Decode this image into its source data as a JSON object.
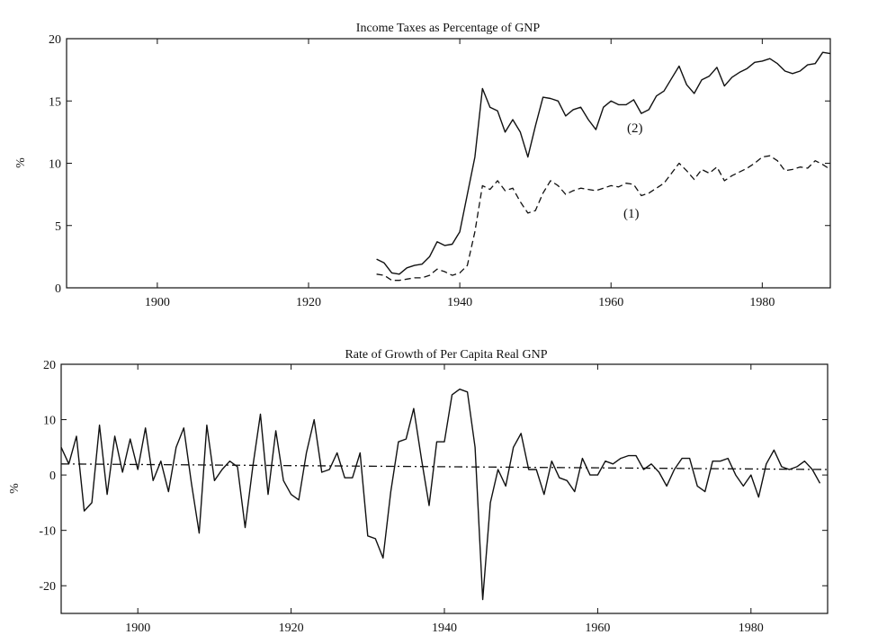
{
  "chart_data": [
    {
      "type": "line",
      "title": "Income Taxes as Percentage of GNP",
      "ylabel": "%",
      "xlim": [
        1888,
        1989
      ],
      "ylim": [
        0,
        20
      ],
      "x_ticks": [
        1900,
        1920,
        1940,
        1960,
        1980
      ],
      "y_ticks": [
        0,
        5,
        10,
        15,
        20
      ],
      "grid": false,
      "series": [
        {
          "name": "(2)",
          "style": "solid",
          "x": [
            1929,
            1930,
            1931,
            1932,
            1933,
            1934,
            1935,
            1936,
            1937,
            1938,
            1939,
            1940,
            1941,
            1942,
            1943,
            1944,
            1945,
            1946,
            1947,
            1948,
            1949,
            1950,
            1951,
            1952,
            1953,
            1954,
            1955,
            1956,
            1957,
            1958,
            1959,
            1960,
            1961,
            1962,
            1963,
            1964,
            1965,
            1966,
            1967,
            1968,
            1969,
            1970,
            1971,
            1972,
            1973,
            1974,
            1975,
            1976,
            1977,
            1978,
            1979,
            1980,
            1981,
            1982,
            1983,
            1984,
            1985,
            1986,
            1987,
            1988,
            1989
          ],
          "values": [
            2.3,
            2.0,
            1.2,
            1.1,
            1.6,
            1.8,
            1.9,
            2.5,
            3.7,
            3.4,
            3.5,
            4.5,
            7.5,
            10.5,
            16.0,
            14.5,
            14.2,
            12.5,
            13.5,
            12.5,
            10.5,
            13.0,
            15.3,
            15.2,
            15.0,
            13.8,
            14.3,
            14.5,
            13.5,
            12.7,
            14.5,
            15.0,
            14.7,
            14.7,
            15.1,
            14.0,
            14.3,
            15.4,
            15.8,
            16.8,
            17.8,
            16.3,
            15.6,
            16.7,
            17.0,
            17.7,
            16.2,
            16.9,
            17.3,
            17.6,
            18.1,
            18.2,
            18.4,
            18.0,
            17.4,
            17.2,
            17.4,
            17.9,
            18.0,
            18.9,
            18.8
          ]
        },
        {
          "name": "(1)",
          "style": "dashed",
          "x": [
            1929,
            1930,
            1931,
            1932,
            1933,
            1934,
            1935,
            1936,
            1937,
            1938,
            1939,
            1940,
            1941,
            1942,
            1943,
            1944,
            1945,
            1946,
            1947,
            1948,
            1949,
            1950,
            1951,
            1952,
            1953,
            1954,
            1955,
            1956,
            1957,
            1958,
            1959,
            1960,
            1961,
            1962,
            1963,
            1964,
            1965,
            1966,
            1967,
            1968,
            1969,
            1970,
            1971,
            1972,
            1973,
            1974,
            1975,
            1976,
            1977,
            1978,
            1979,
            1980,
            1981,
            1982,
            1983,
            1984,
            1985,
            1986,
            1987,
            1988,
            1989
          ],
          "values": [
            1.1,
            1.0,
            0.6,
            0.6,
            0.7,
            0.8,
            0.8,
            1.0,
            1.5,
            1.3,
            1.0,
            1.2,
            1.8,
            4.5,
            8.2,
            7.9,
            8.6,
            7.8,
            8.0,
            6.9,
            6.0,
            6.2,
            7.6,
            8.6,
            8.2,
            7.5,
            7.8,
            8.0,
            7.9,
            7.8,
            8.0,
            8.2,
            8.1,
            8.4,
            8.3,
            7.4,
            7.6,
            8.0,
            8.4,
            9.2,
            10.0,
            9.4,
            8.7,
            9.5,
            9.2,
            9.7,
            8.6,
            9.0,
            9.3,
            9.6,
            10.0,
            10.5,
            10.6,
            10.2,
            9.4,
            9.5,
            9.7,
            9.6,
            10.2,
            9.9,
            9.5
          ]
        }
      ]
    },
    {
      "type": "line",
      "title": "Rate of Growth of Per Capita Real GNP",
      "ylabel": "%",
      "xlim": [
        1890,
        1990
      ],
      "ylim": [
        -25,
        20
      ],
      "x_ticks": [
        1900,
        1920,
        1940,
        1960,
        1980
      ],
      "y_ticks": [
        -20,
        -10,
        0,
        10,
        20
      ],
      "grid": false,
      "series": [
        {
          "style": "solid",
          "x": [
            1890,
            1891,
            1892,
            1893,
            1894,
            1895,
            1896,
            1897,
            1898,
            1899,
            1900,
            1901,
            1902,
            1903,
            1904,
            1905,
            1906,
            1907,
            1908,
            1909,
            1910,
            1911,
            1912,
            1913,
            1914,
            1915,
            1916,
            1917,
            1918,
            1919,
            1920,
            1921,
            1922,
            1923,
            1924,
            1925,
            1926,
            1927,
            1928,
            1929,
            1930,
            1931,
            1932,
            1933,
            1934,
            1935,
            1936,
            1937,
            1938,
            1939,
            1940,
            1941,
            1942,
            1943,
            1944,
            1945,
            1946,
            1947,
            1948,
            1949,
            1950,
            1951,
            1952,
            1953,
            1954,
            1955,
            1956,
            1957,
            1958,
            1959,
            1960,
            1961,
            1962,
            1963,
            1964,
            1965,
            1966,
            1967,
            1968,
            1969,
            1970,
            1971,
            1972,
            1973,
            1974,
            1975,
            1976,
            1977,
            1978,
            1979,
            1980,
            1981,
            1982,
            1983,
            1984,
            1985,
            1986,
            1987,
            1988,
            1989
          ],
          "values": [
            5,
            2,
            7,
            -6.5,
            -5,
            9,
            -3.5,
            7,
            0.5,
            6.5,
            1,
            8.5,
            -1,
            2.5,
            -3,
            5,
            8.5,
            -1.5,
            -10.5,
            9,
            -1,
            1,
            2.5,
            1.5,
            -9.5,
            1.5,
            11,
            -3.5,
            8,
            -1,
            -3.5,
            -4.5,
            4,
            10,
            0.5,
            1,
            4,
            -0.5,
            -0.5,
            4,
            -11,
            -11.5,
            -15,
            -3,
            6,
            6.5,
            12,
            3,
            -5.5,
            6,
            6,
            14.5,
            15.5,
            15,
            5,
            -22.5,
            -5,
            1,
            -2,
            5,
            7.5,
            1,
            1,
            -3.5,
            2.5,
            -0.5,
            -1,
            -3,
            3,
            0,
            0,
            2.5,
            2,
            3,
            3.5,
            3.5,
            1,
            2,
            0.5,
            -2,
            1,
            3,
            3,
            -2,
            -3,
            2.5,
            2.5,
            3,
            0,
            -2,
            0,
            -4,
            2,
            4.5,
            1.5,
            1,
            1.5,
            2.5,
            1,
            -1.5
          ]
        },
        {
          "style": "dashed",
          "x": [
            1890,
            1990
          ],
          "values": [
            2,
            1
          ]
        }
      ]
    }
  ]
}
